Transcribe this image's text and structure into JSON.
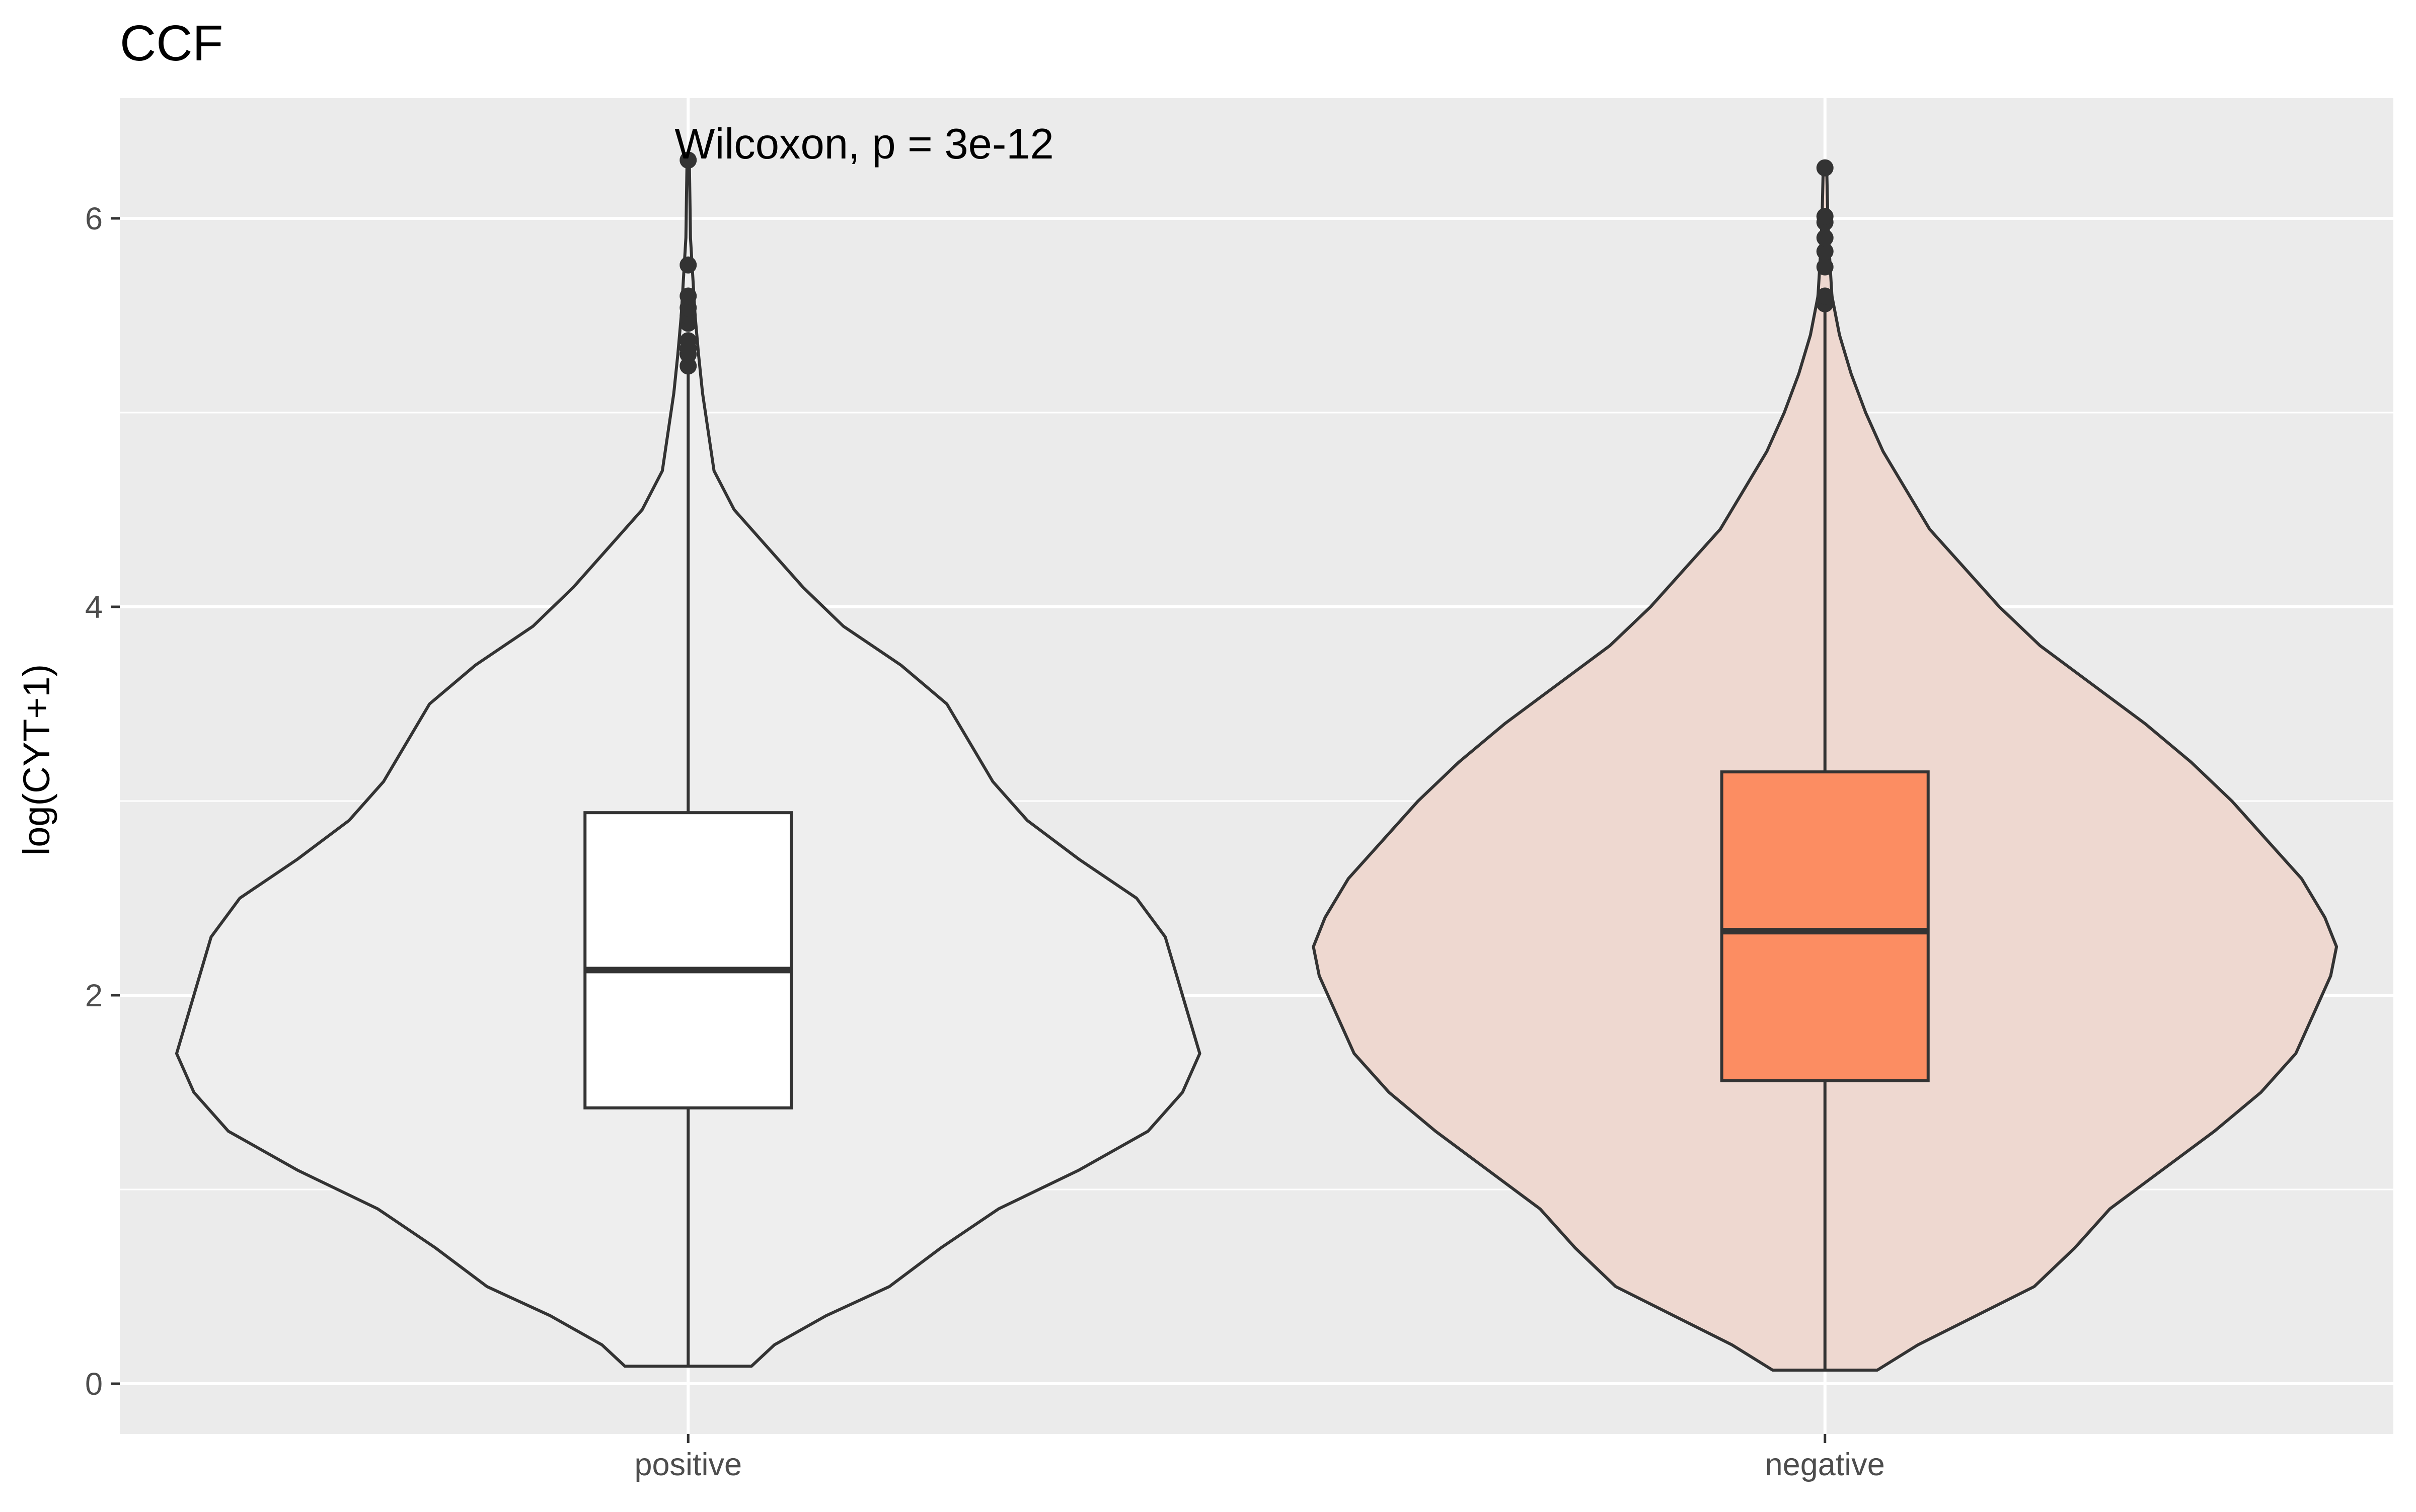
{
  "chart_data": {
    "type": "violin",
    "title": "CCF",
    "xlabel": "",
    "ylabel": "log(CYT+1)",
    "ylim": [
      -0.25,
      6.6
    ],
    "yticks": [
      0,
      2,
      4,
      6
    ],
    "grid": true,
    "legend": "none",
    "categories": [
      "positive",
      "negative"
    ],
    "annotation": "Wilcoxon, p = 3e-12",
    "groups": [
      {
        "category": "positive",
        "violin_color": "#EEEEEE",
        "box_color": "#FFFFFF",
        "box": {
          "whisker_low": 0.09,
          "q1": 1.42,
          "median": 2.13,
          "q3": 2.94,
          "whisker_high": 5.3
        },
        "outliers": [
          5.24,
          5.3,
          5.33,
          5.37,
          5.46,
          5.5,
          5.54,
          5.6,
          5.76,
          6.3
        ],
        "density": [
          [
            0.09,
            0.11
          ],
          [
            0.2,
            0.15
          ],
          [
            0.35,
            0.24
          ],
          [
            0.5,
            0.35
          ],
          [
            0.7,
            0.44
          ],
          [
            0.9,
            0.54
          ],
          [
            1.1,
            0.68
          ],
          [
            1.3,
            0.8
          ],
          [
            1.5,
            0.86
          ],
          [
            1.7,
            0.89
          ],
          [
            1.9,
            0.87
          ],
          [
            2.1,
            0.85
          ],
          [
            2.3,
            0.83
          ],
          [
            2.5,
            0.78
          ],
          [
            2.7,
            0.68
          ],
          [
            2.9,
            0.59
          ],
          [
            3.1,
            0.53
          ],
          [
            3.3,
            0.49
          ],
          [
            3.5,
            0.45
          ],
          [
            3.7,
            0.37
          ],
          [
            3.9,
            0.27
          ],
          [
            4.1,
            0.2
          ],
          [
            4.3,
            0.14
          ],
          [
            4.5,
            0.08
          ],
          [
            4.7,
            0.045
          ],
          [
            4.9,
            0.035
          ],
          [
            5.1,
            0.025
          ],
          [
            5.3,
            0.018
          ],
          [
            5.5,
            0.012
          ],
          [
            5.7,
            0.008
          ],
          [
            5.9,
            0.004
          ],
          [
            6.1,
            0.003
          ],
          [
            6.3,
            0.002
          ]
        ]
      },
      {
        "category": "negative",
        "violin_color": "#EED8D0",
        "box_color": "#FC8D62",
        "box": {
          "whisker_low": 0.07,
          "q1": 1.56,
          "median": 2.33,
          "q3": 3.15,
          "whisker_high": 5.56
        },
        "outliers": [
          5.56,
          5.6,
          5.75,
          5.83,
          5.9,
          5.98,
          6.01,
          6.26
        ],
        "density": [
          [
            0.07,
            0.09
          ],
          [
            0.2,
            0.16
          ],
          [
            0.35,
            0.26
          ],
          [
            0.5,
            0.36
          ],
          [
            0.7,
            0.43
          ],
          [
            0.9,
            0.49
          ],
          [
            1.1,
            0.58
          ],
          [
            1.3,
            0.67
          ],
          [
            1.5,
            0.75
          ],
          [
            1.7,
            0.81
          ],
          [
            1.9,
            0.84
          ],
          [
            2.1,
            0.87
          ],
          [
            2.25,
            0.88
          ],
          [
            2.4,
            0.86
          ],
          [
            2.6,
            0.82
          ],
          [
            2.8,
            0.76
          ],
          [
            3.0,
            0.7
          ],
          [
            3.2,
            0.63
          ],
          [
            3.4,
            0.55
          ],
          [
            3.6,
            0.46
          ],
          [
            3.8,
            0.37
          ],
          [
            4.0,
            0.3
          ],
          [
            4.2,
            0.24
          ],
          [
            4.4,
            0.18
          ],
          [
            4.6,
            0.14
          ],
          [
            4.8,
            0.1
          ],
          [
            5.0,
            0.07
          ],
          [
            5.2,
            0.045
          ],
          [
            5.4,
            0.025
          ],
          [
            5.6,
            0.012
          ],
          [
            5.8,
            0.008
          ],
          [
            6.0,
            0.005
          ],
          [
            6.26,
            0.003
          ]
        ]
      }
    ]
  }
}
